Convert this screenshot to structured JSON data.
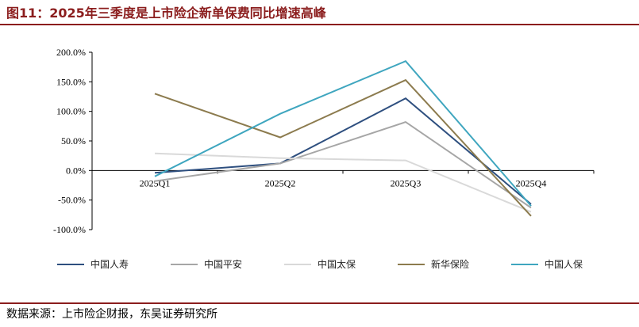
{
  "header": {
    "title": "图11：2025年三季度是上市险企新单保费同比增速高峰"
  },
  "footer": {
    "source": "数据来源：上市险企财报，东吴证券研究所"
  },
  "chart_data": {
    "type": "line",
    "categories": [
      "2025Q1",
      "2025Q2",
      "2025Q3",
      "2025Q4"
    ],
    "y_ticks": [
      "200.0%",
      "150.0%",
      "100.0%",
      "50.0%",
      "0.0%",
      "-50.0%",
      "-100.0%"
    ],
    "ylim": [
      -100,
      200
    ],
    "grid": false,
    "legend_position": "bottom",
    "series": [
      {
        "name": "中国人寿",
        "color": "#2e4f7f",
        "values": [
          -4,
          12,
          122,
          -57
        ]
      },
      {
        "name": "中国平安",
        "color": "#a6a6a6",
        "values": [
          -18,
          12,
          82,
          -63
        ]
      },
      {
        "name": "中国太保",
        "color": "#d9d9d9",
        "values": [
          29,
          21,
          17,
          -70
        ]
      },
      {
        "name": "新华保险",
        "color": "#8c7b4e",
        "values": [
          130,
          56,
          153,
          -77
        ]
      },
      {
        "name": "中国人保",
        "color": "#3fa6bf",
        "values": [
          -10,
          96,
          185,
          -60
        ]
      }
    ]
  }
}
